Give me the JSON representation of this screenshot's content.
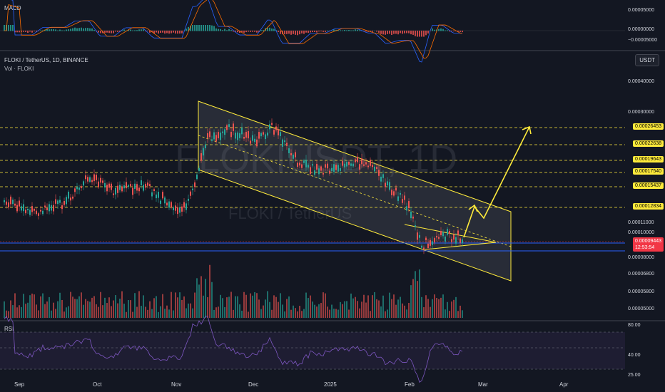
{
  "panes": {
    "macd": {
      "label": "MACD",
      "ticks": [
        "0.00005000",
        "0.00000000",
        "−0.00005000"
      ]
    },
    "main": {
      "title": "FLOKI / TetherUS, 1D, BINANCE",
      "volume_label": "Vol · FLOKI",
      "currency_button": "USDT",
      "watermark_big": "FLOKIUSDT, 1D",
      "watermark_small": "FLOKI / TetherUS",
      "ticks": [
        "0.00040000",
        "0.00030000",
        "0.00011000",
        "0.00010000",
        "0.00008000",
        "0.00006800",
        "0.00005800",
        "0.00005000"
      ],
      "levels": [
        "0.00026453",
        "0.00022638",
        "0.00019643",
        "0.00017540",
        "0.00015437",
        "0.00012834"
      ],
      "current_price": "0.00009443",
      "countdown": "12:53:54"
    },
    "rsi": {
      "label": "RSI",
      "ticks": [
        "80.00",
        "40.00",
        "25.00"
      ]
    }
  },
  "time_axis": [
    "Sep",
    "Oct",
    "Nov",
    "Dec",
    "2025",
    "Feb",
    "Mar",
    "Apr"
  ],
  "colors": {
    "background": "#131722",
    "up": "#26a69a",
    "down": "#ef5350",
    "channel": "#ffeb3b",
    "rsi": "#7e57c2",
    "macd": "#2962ff",
    "signal": "#ff6d00"
  }
}
